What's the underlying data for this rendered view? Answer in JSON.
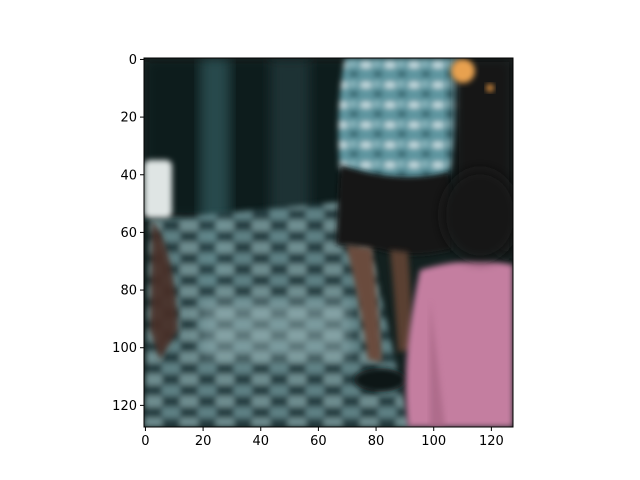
{
  "image": {
    "description_free": true,
    "scene_elements": [
      "legs",
      "checkered-floor",
      "patterned-shirt",
      "pink-shirt",
      "white-object"
    ]
  },
  "axes": {
    "x_ticks": [
      "0",
      "20",
      "40",
      "60",
      "80",
      "100",
      "120"
    ],
    "y_ticks": [
      "0",
      "20",
      "40",
      "60",
      "80",
      "100",
      "120"
    ],
    "x_tick_values": [
      0,
      20,
      40,
      60,
      80,
      100,
      120
    ],
    "y_tick_values": [
      0,
      20,
      40,
      60,
      80,
      100,
      120
    ],
    "xlim": [
      -0.5,
      127.5
    ],
    "ylim": [
      127.5,
      -0.5
    ],
    "image_size": [
      128,
      128
    ]
  },
  "colors": {
    "floor_dark": "#1f3236",
    "floor_teal": "#3d6a70",
    "floor_light": "#9fb8bb",
    "shirt_blue": "#6fa3ad",
    "shirt_pink": "#c67fa2",
    "skin": "#8a5e4c",
    "shorts": "#151616",
    "background_dark": "#101617"
  }
}
